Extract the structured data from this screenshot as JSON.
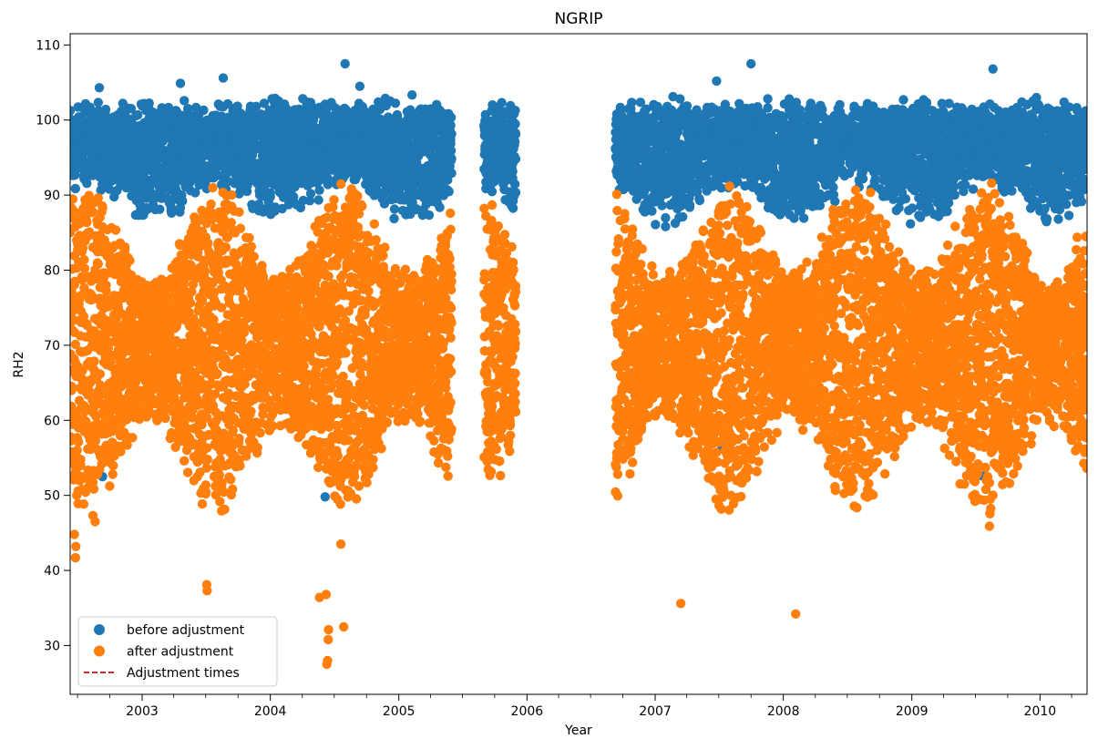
{
  "chart_data": {
    "type": "scatter",
    "title": "NGRIP",
    "xlabel": "Year",
    "ylabel": "RH2",
    "x_axis": "date",
    "xlim": [
      "2002-06-10",
      "2010-05-15"
    ],
    "ylim": [
      23.5,
      111.5
    ],
    "x_ticks": [
      "2003",
      "2004",
      "2005",
      "2006",
      "2007",
      "2008",
      "2009",
      "2010"
    ],
    "y_ticks": [
      30,
      40,
      50,
      60,
      70,
      80,
      90,
      100,
      110
    ],
    "grid": false,
    "legend": {
      "position": "lower-left",
      "entries": [
        "before adjustment",
        "after adjustment",
        "Adjustment times"
      ]
    },
    "series": [
      {
        "name": "before adjustment",
        "color": "#1f77b4",
        "marker": "circle",
        "segments": [
          {
            "start": "2002-06-10",
            "end": "2005-06-01"
          },
          {
            "start": "2005-09-01",
            "end": "2005-12-01"
          },
          {
            "start": "2006-09-10",
            "end": "2010-05-15"
          }
        ],
        "typical_range": [
          88,
          102
        ],
        "outliers": [
          {
            "x": "2004-08-01",
            "y": 107.5
          },
          {
            "x": "2004-09-12",
            "y": 104.5
          },
          {
            "x": "2003-08-20",
            "y": 105.6
          },
          {
            "x": "2007-10-01",
            "y": 107.5
          },
          {
            "x": "2007-06-25",
            "y": 105.2
          },
          {
            "x": "2009-08-20",
            "y": 106.8
          },
          {
            "x": "2003-04-20",
            "y": 104.9
          },
          {
            "x": "2002-09-01",
            "y": 104.3
          },
          {
            "x": "2004-06-05",
            "y": 49.8
          },
          {
            "x": "2007-07-10",
            "y": 56.5
          },
          {
            "x": "2009-07-20",
            "y": 52.6
          },
          {
            "x": "2002-09-10",
            "y": 52.5
          }
        ]
      },
      {
        "name": "after adjustment",
        "color": "#ff7f0e",
        "marker": "circle",
        "segments": [
          {
            "start": "2002-06-10",
            "end": "2005-06-01"
          },
          {
            "start": "2005-09-01",
            "end": "2005-12-01"
          },
          {
            "start": "2006-09-10",
            "end": "2010-05-15"
          }
        ],
        "typical_range": [
          42,
          92
        ],
        "outliers": [
          {
            "x": "2004-06-10",
            "y": 27.5
          },
          {
            "x": "2004-06-12",
            "y": 28.0
          },
          {
            "x": "2004-06-14",
            "y": 30.8
          },
          {
            "x": "2004-06-15",
            "y": 32.1
          },
          {
            "x": "2004-07-28",
            "y": 32.5
          },
          {
            "x": "2004-05-20",
            "y": 36.4
          },
          {
            "x": "2004-06-08",
            "y": 36.8
          },
          {
            "x": "2003-07-05",
            "y": 37.3
          },
          {
            "x": "2003-07-04",
            "y": 38.1
          },
          {
            "x": "2007-03-15",
            "y": 35.6
          },
          {
            "x": "2008-02-05",
            "y": 34.2
          },
          {
            "x": "2002-06-25",
            "y": 41.7
          },
          {
            "x": "2002-06-26",
            "y": 43.2
          },
          {
            "x": "2002-06-22",
            "y": 44.8
          },
          {
            "x": "2002-08-20",
            "y": 46.5
          },
          {
            "x": "2009-08-10",
            "y": 45.9
          },
          {
            "x": "2007-08-22",
            "y": 49.7
          },
          {
            "x": "2003-09-15",
            "y": 55.6
          },
          {
            "x": "2004-07-20",
            "y": 43.5
          },
          {
            "x": "2008-08-20",
            "y": 54.5
          },
          {
            "x": "2005-01-20",
            "y": 80.1
          }
        ]
      },
      {
        "name": "Adjustment times",
        "color": "#d62728",
        "style": "dashed",
        "values": []
      }
    ]
  }
}
